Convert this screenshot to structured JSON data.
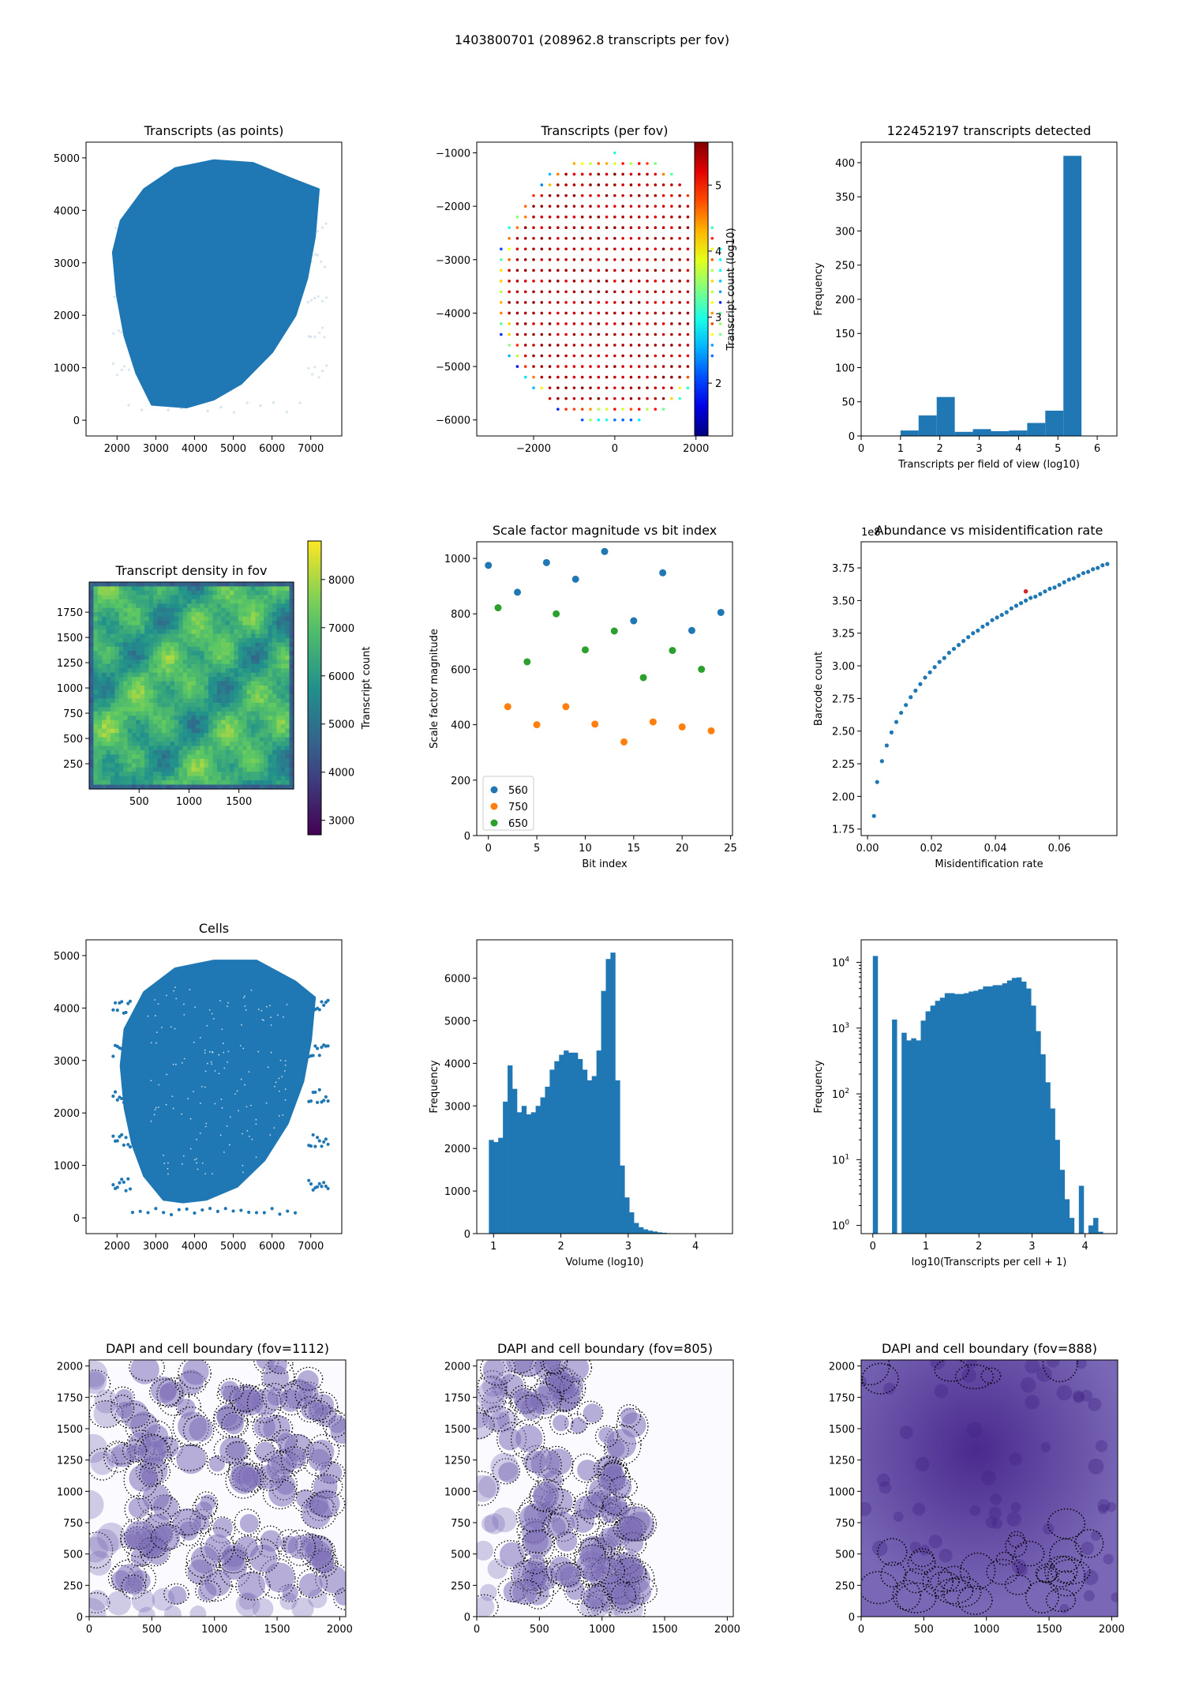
{
  "suptitle": "1403800701 (208962.8 transcripts per fov)",
  "colors": {
    "blue": "#1f77b4",
    "orange": "#ff7f0e",
    "green": "#2ca02c",
    "red": "#d62728",
    "purple": "#5a3f9b"
  },
  "chart_data": [
    {
      "id": "points",
      "type": "scatter",
      "title": "Transcripts (as points)",
      "xlim": [
        1200,
        7800
      ],
      "ylim": [
        -300,
        5300
      ],
      "xticks": [
        2000,
        3000,
        4000,
        5000,
        6000,
        7000
      ],
      "yticks": [
        0,
        1000,
        2000,
        3000,
        4000,
        5000
      ],
      "outline": [
        [
          2900,
          300
        ],
        [
          2500,
          900
        ],
        [
          2200,
          1600
        ],
        [
          2000,
          2400
        ],
        [
          1900,
          3200
        ],
        [
          2100,
          3800
        ],
        [
          2700,
          4400
        ],
        [
          3500,
          4800
        ],
        [
          4500,
          4950
        ],
        [
          5500,
          4900
        ],
        [
          6500,
          4600
        ],
        [
          7200,
          4400
        ],
        [
          7100,
          3500
        ],
        [
          6900,
          2700
        ],
        [
          6600,
          2000
        ],
        [
          6000,
          1300
        ],
        [
          5200,
          700
        ],
        [
          4500,
          400
        ],
        [
          3800,
          250
        ]
      ],
      "labels": []
    },
    {
      "id": "fovgrid",
      "type": "scatter",
      "title": "Transcripts (per fov)",
      "colorbar_label": "Transcript count (log10)",
      "xlim": [
        -3400,
        2900
      ],
      "ylim": [
        -6300,
        -800
      ],
      "clim": [
        1.2,
        5.65
      ],
      "xticks": [
        -2000,
        0,
        2000
      ],
      "yticks": [
        -6000,
        -5000,
        -4000,
        -3000,
        -2000,
        -1000
      ],
      "cticks": [
        2,
        3,
        4,
        5
      ]
    },
    {
      "id": "fovhist",
      "type": "bar",
      "title": "122452197 transcripts detected",
      "xlabel": "Transcripts per field of view (log10)",
      "ylabel": "Frequency",
      "xlim": [
        0,
        6.5
      ],
      "ylim": [
        0,
        430
      ],
      "xticks": [
        0,
        1,
        2,
        3,
        4,
        5,
        6
      ],
      "yticks": [
        0,
        50,
        100,
        150,
        200,
        250,
        300,
        350,
        400
      ],
      "bin_edges": [
        1.0,
        1.46,
        1.92,
        2.38,
        2.84,
        3.3,
        3.76,
        4.22,
        4.68,
        5.14,
        5.6
      ],
      "values": [
        8,
        30,
        57,
        6,
        10,
        7,
        8,
        19,
        37,
        410
      ]
    },
    {
      "id": "density",
      "type": "heatmap",
      "title": "Transcript density in fov",
      "colorbar_label": "Transcript count",
      "xlim": [
        0,
        2048
      ],
      "ylim": [
        0,
        2048
      ],
      "clim": [
        2700,
        8800
      ],
      "xticks": [
        500,
        1000,
        1500
      ],
      "yticks": [
        250,
        500,
        750,
        1000,
        1250,
        1500,
        1750
      ],
      "cticks": [
        3000,
        4000,
        5000,
        6000,
        7000,
        8000
      ]
    },
    {
      "id": "scale",
      "type": "scatter",
      "title": "Scale factor magnitude vs bit index",
      "xlabel": "Bit index",
      "ylabel": "Scale factor magnitude",
      "xlim": [
        -1.2,
        25.2
      ],
      "ylim": [
        0,
        1060
      ],
      "xticks": [
        0,
        5,
        10,
        15,
        20,
        25
      ],
      "yticks": [
        0,
        200,
        400,
        600,
        800,
        1000
      ],
      "series": [
        {
          "name": "560",
          "color": "#1f77b4",
          "x": [
            0,
            3,
            6,
            9,
            12,
            15,
            18,
            21,
            24
          ],
          "y": [
            975,
            878,
            985,
            925,
            1025,
            775,
            948,
            740,
            805
          ]
        },
        {
          "name": "750",
          "color": "#ff7f0e",
          "x": [
            2,
            5,
            8,
            11,
            14,
            17,
            20,
            23
          ],
          "y": [
            465,
            400,
            465,
            402,
            338,
            410,
            392,
            378
          ]
        },
        {
          "name": "650",
          "color": "#2ca02c",
          "x": [
            1,
            4,
            7,
            10,
            13,
            16,
            19,
            22
          ],
          "y": [
            822,
            627,
            800,
            670,
            738,
            570,
            668,
            600
          ]
        }
      ]
    },
    {
      "id": "abund",
      "type": "scatter",
      "title": "Abundance vs misidentification rate",
      "xlabel": "Misidentification rate",
      "ylabel": "Barcode count",
      "offset": "1e8",
      "xlim": [
        -0.002,
        0.078
      ],
      "ylim": [
        1.7,
        3.95
      ],
      "xticks": [
        0.0,
        0.02,
        0.04,
        0.06
      ],
      "yticks": [
        1.75,
        2.0,
        2.25,
        2.5,
        2.75,
        3.0,
        3.25,
        3.5,
        3.75
      ],
      "x": [
        0.002,
        0.003,
        0.0045,
        0.006,
        0.0075,
        0.009,
        0.0105,
        0.012,
        0.0135,
        0.015,
        0.0165,
        0.018,
        0.0195,
        0.021,
        0.0225,
        0.024,
        0.0255,
        0.027,
        0.0285,
        0.03,
        0.0315,
        0.033,
        0.0345,
        0.036,
        0.0375,
        0.039,
        0.0405,
        0.042,
        0.0435,
        0.045,
        0.0465,
        0.048,
        0.0495,
        0.051,
        0.0525,
        0.054,
        0.0555,
        0.057,
        0.0585,
        0.06,
        0.0615,
        0.063,
        0.0645,
        0.066,
        0.0675,
        0.069,
        0.0705,
        0.072,
        0.0735,
        0.075
      ],
      "y": [
        1.85,
        2.11,
        2.27,
        2.39,
        2.49,
        2.57,
        2.64,
        2.7,
        2.76,
        2.81,
        2.86,
        2.91,
        2.95,
        2.99,
        3.03,
        3.06,
        3.1,
        3.13,
        3.16,
        3.19,
        3.22,
        3.25,
        3.27,
        3.3,
        3.32,
        3.35,
        3.37,
        3.39,
        3.41,
        3.44,
        3.46,
        3.48,
        3.5,
        3.52,
        3.53,
        3.55,
        3.57,
        3.59,
        3.6,
        3.62,
        3.64,
        3.66,
        3.67,
        3.69,
        3.71,
        3.72,
        3.74,
        3.75,
        3.77,
        3.78
      ],
      "highlight": {
        "x": 0.0495,
        "y": 3.57
      }
    },
    {
      "id": "cells",
      "type": "scatter",
      "title": "Cells",
      "xlim": [
        1200,
        7800
      ],
      "ylim": [
        -300,
        5300
      ],
      "xticks": [
        2000,
        3000,
        4000,
        5000,
        6000,
        7000
      ],
      "yticks": [
        0,
        1000,
        2000,
        3000,
        4000,
        5000
      ],
      "outline": [
        [
          3200,
          350
        ],
        [
          2700,
          800
        ],
        [
          2400,
          1400
        ],
        [
          2200,
          2100
        ],
        [
          2100,
          2900
        ],
        [
          2200,
          3600
        ],
        [
          2700,
          4300
        ],
        [
          3500,
          4750
        ],
        [
          4500,
          4900
        ],
        [
          5600,
          4900
        ],
        [
          6600,
          4500
        ],
        [
          7100,
          4200
        ],
        [
          7000,
          3400
        ],
        [
          6800,
          2600
        ],
        [
          6400,
          1800
        ],
        [
          5800,
          1100
        ],
        [
          5100,
          600
        ],
        [
          4300,
          350
        ],
        [
          3700,
          300
        ]
      ]
    },
    {
      "id": "volume",
      "type": "bar",
      "title": "",
      "xlabel": "Volume (log10)",
      "ylabel": "Frequency",
      "xlim": [
        0.75,
        4.55
      ],
      "ylim": [
        0,
        6900
      ],
      "xticks": [
        1,
        2,
        3,
        4
      ],
      "yticks": [
        0,
        1000,
        2000,
        3000,
        4000,
        5000,
        6000
      ],
      "bin_start": 0.93,
      "bin_width": 0.0695,
      "values": [
        2200,
        2150,
        2250,
        3100,
        3950,
        3400,
        2850,
        3000,
        2800,
        2850,
        3000,
        3200,
        3450,
        3850,
        4050,
        4200,
        4300,
        4250,
        4250,
        4100,
        3850,
        3600,
        3700,
        4300,
        5700,
        6450,
        6600,
        3600,
        1600,
        850,
        500,
        250,
        150,
        100,
        70,
        50,
        30,
        20,
        10,
        8
      ]
    },
    {
      "id": "percell",
      "type": "bar",
      "scale": "log",
      "title": "",
      "xlabel": "log10(Transcripts per cell + 1)",
      "ylabel": "Frequency",
      "xlim": [
        -0.22,
        4.6
      ],
      "ylim": [
        0.75,
        22000
      ],
      "xticks": [
        0,
        1,
        2,
        3,
        4
      ],
      "yticks": [
        "10^0",
        "10^1",
        "10^2",
        "10^3",
        "10^4"
      ],
      "bin_start": 0,
      "bin_width": 0.0903,
      "values": [
        12500,
        0,
        0,
        0,
        1350,
        0,
        850,
        650,
        700,
        650,
        1300,
        1800,
        2200,
        2600,
        2900,
        3400,
        3400,
        3300,
        3300,
        3400,
        3600,
        3700,
        3900,
        4300,
        4300,
        4500,
        4500,
        4800,
        5300,
        5800,
        5900,
        5100,
        4000,
        2200,
        900,
        400,
        150,
        60,
        20,
        7,
        2.5,
        1.3,
        0,
        4,
        0,
        1,
        1.3,
        0.8,
        0.5
      ]
    },
    {
      "id": "dapi1",
      "type": "heatmap",
      "title": "DAPI and cell boundary (fov=1112)",
      "xlim": [
        0,
        2048
      ],
      "ylim": [
        0,
        2048
      ],
      "xticks": [
        0,
        500,
        1000,
        1500,
        2000
      ],
      "yticks": [
        0,
        250,
        500,
        750,
        1000,
        1250,
        1500,
        1750,
        2000
      ],
      "seed": 11,
      "mode": "sparse"
    },
    {
      "id": "dapi2",
      "type": "heatmap",
      "title": "DAPI and cell boundary (fov=805)",
      "xlim": [
        0,
        2048
      ],
      "ylim": [
        0,
        2048
      ],
      "xticks": [
        0,
        500,
        1000,
        1500,
        2000
      ],
      "yticks": [
        0,
        250,
        500,
        750,
        1000,
        1250,
        1500,
        1750,
        2000
      ],
      "seed": 23,
      "mode": "left"
    },
    {
      "id": "dapi3",
      "type": "heatmap",
      "title": "DAPI and cell boundary (fov=888)",
      "xlim": [
        0,
        2048
      ],
      "ylim": [
        0,
        2048
      ],
      "xticks": [
        0,
        500,
        1000,
        1500,
        2000
      ],
      "yticks": [
        0,
        250,
        500,
        750,
        1000,
        1250,
        1500,
        1750,
        2000
      ],
      "seed": 37,
      "mode": "dense"
    }
  ]
}
